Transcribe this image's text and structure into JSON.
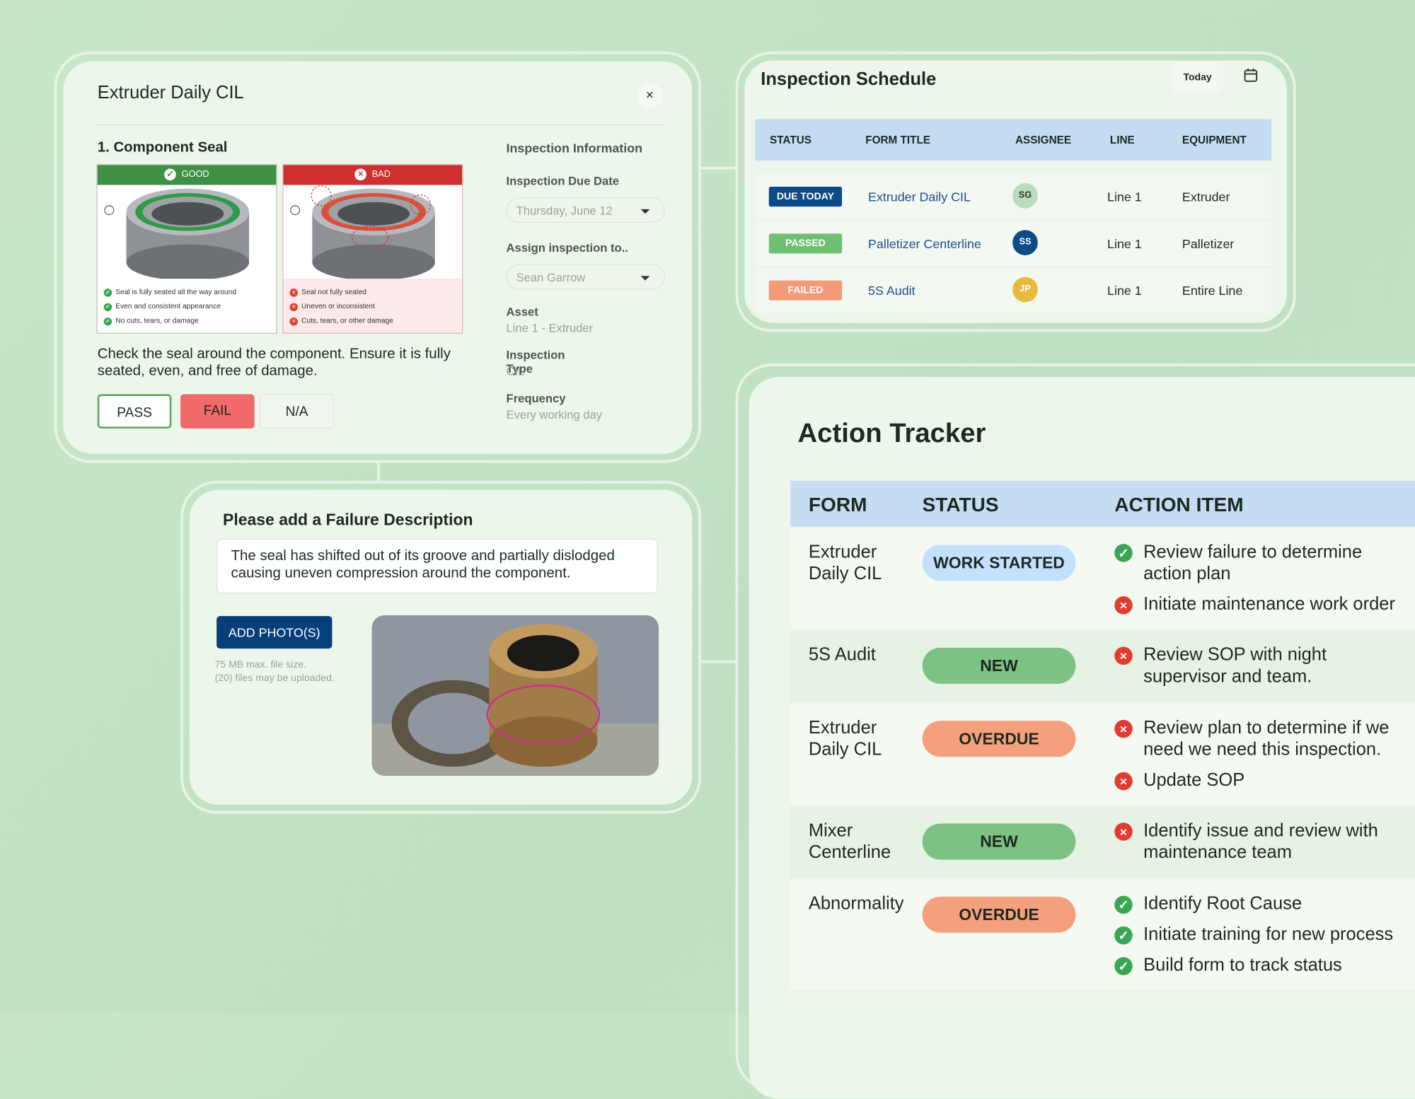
{
  "inspection_card": {
    "title": "Extruder Daily CIL",
    "close": "×",
    "section": "1. Component Seal",
    "good": {
      "label": "GOOD",
      "points": [
        "Seal is fully seated all the way around",
        "Even and consistent appearance",
        "No cuts, tears, or damage"
      ]
    },
    "bad": {
      "label": "BAD",
      "points": [
        "Seal not fully seated",
        "Uneven or inconsistent",
        "Cuts, tears, or other damage"
      ]
    },
    "instruction": "Check the seal around the component. Ensure it is fully seated, even, and free of damage.",
    "buttons": [
      "PASS",
      "FAIL",
      "N/A"
    ],
    "info": {
      "heading": "Inspection Information",
      "due_label": "Inspection Due Date",
      "due_value": "Thursday, June 12",
      "assign_label": "Assign inspection to..",
      "assign_value": "Sean Garrow",
      "fields": [
        {
          "label": "Asset",
          "value": "Line 1 - Extruder"
        },
        {
          "label": "Inspection Type",
          "value": "CIL"
        },
        {
          "label": "Frequency",
          "value": "Every working day"
        }
      ]
    }
  },
  "failure_card": {
    "title": "Please add a Failure Description",
    "text": "The seal has shifted out of its groove and partially dislodged causing uneven compression around the component.",
    "button": "ADD PHOTO(S)",
    "notes": [
      "75 MB max. file size.",
      "(20) files may be uploaded."
    ]
  },
  "schedule": {
    "title": "Inspection Schedule",
    "today": "Today",
    "columns": [
      "STATUS",
      "FORM TITLE",
      "ASSIGNEE",
      "LINE",
      "EQUIPMENT"
    ],
    "rows": [
      {
        "status": "DUE TODAY",
        "color": "#0e4a86",
        "form": "Extruder Daily CIL",
        "assignee": "SG",
        "avatar_color": "#b9dcbc",
        "line": "Line 1",
        "equipment": "Extruder"
      },
      {
        "status": "PASSED",
        "color": "#6fbf73",
        "form": "Palletizer Centerline",
        "assignee": "SS",
        "avatar_color": "#0e4a86",
        "line": "Line 1",
        "equipment": "Palletizer"
      },
      {
        "status": "FAILED",
        "color": "#f39a78",
        "form": "5S Audit",
        "assignee": "JP",
        "avatar_color": "#e8b93a",
        "line": "Line 1",
        "equipment": "Entire Line"
      }
    ]
  },
  "tracker": {
    "title": "Action Tracker",
    "columns": [
      "FORM",
      "STATUS",
      "ACTION ITEM"
    ],
    "rows": [
      {
        "form": "Extruder Daily CIL",
        "status": "WORK STARTED",
        "color": "#c5e0fb",
        "items": [
          {
            "text": "Review failure to determine action plan",
            "done": true
          },
          {
            "text": "Initiate maintenance work order",
            "done": false
          }
        ]
      },
      {
        "form": "5S Audit",
        "status": "NEW",
        "color": "#7dc283",
        "items": [
          {
            "text": "Review SOP with night supervisor and team.",
            "done": false
          }
        ]
      },
      {
        "form": "Extruder Daily CIL",
        "status": "OVERDUE",
        "color": "#f5a07c",
        "items": [
          {
            "text": "Review plan to determine if we need we need this inspection.",
            "done": false
          },
          {
            "text": "Update SOP",
            "done": false
          }
        ]
      },
      {
        "form": "Mixer Centerline",
        "status": "NEW",
        "color": "#7dc283",
        "items": [
          {
            "text": "Identify issue and review with maintenance team",
            "done": false
          }
        ]
      },
      {
        "form": "Abnormality",
        "status": "OVERDUE",
        "color": "#f5a07c",
        "items": [
          {
            "text": "Identify Root Cause",
            "done": true
          },
          {
            "text": "Initiate training for new process",
            "done": true
          },
          {
            "text": "Build form to track status",
            "done": true
          }
        ]
      }
    ]
  }
}
